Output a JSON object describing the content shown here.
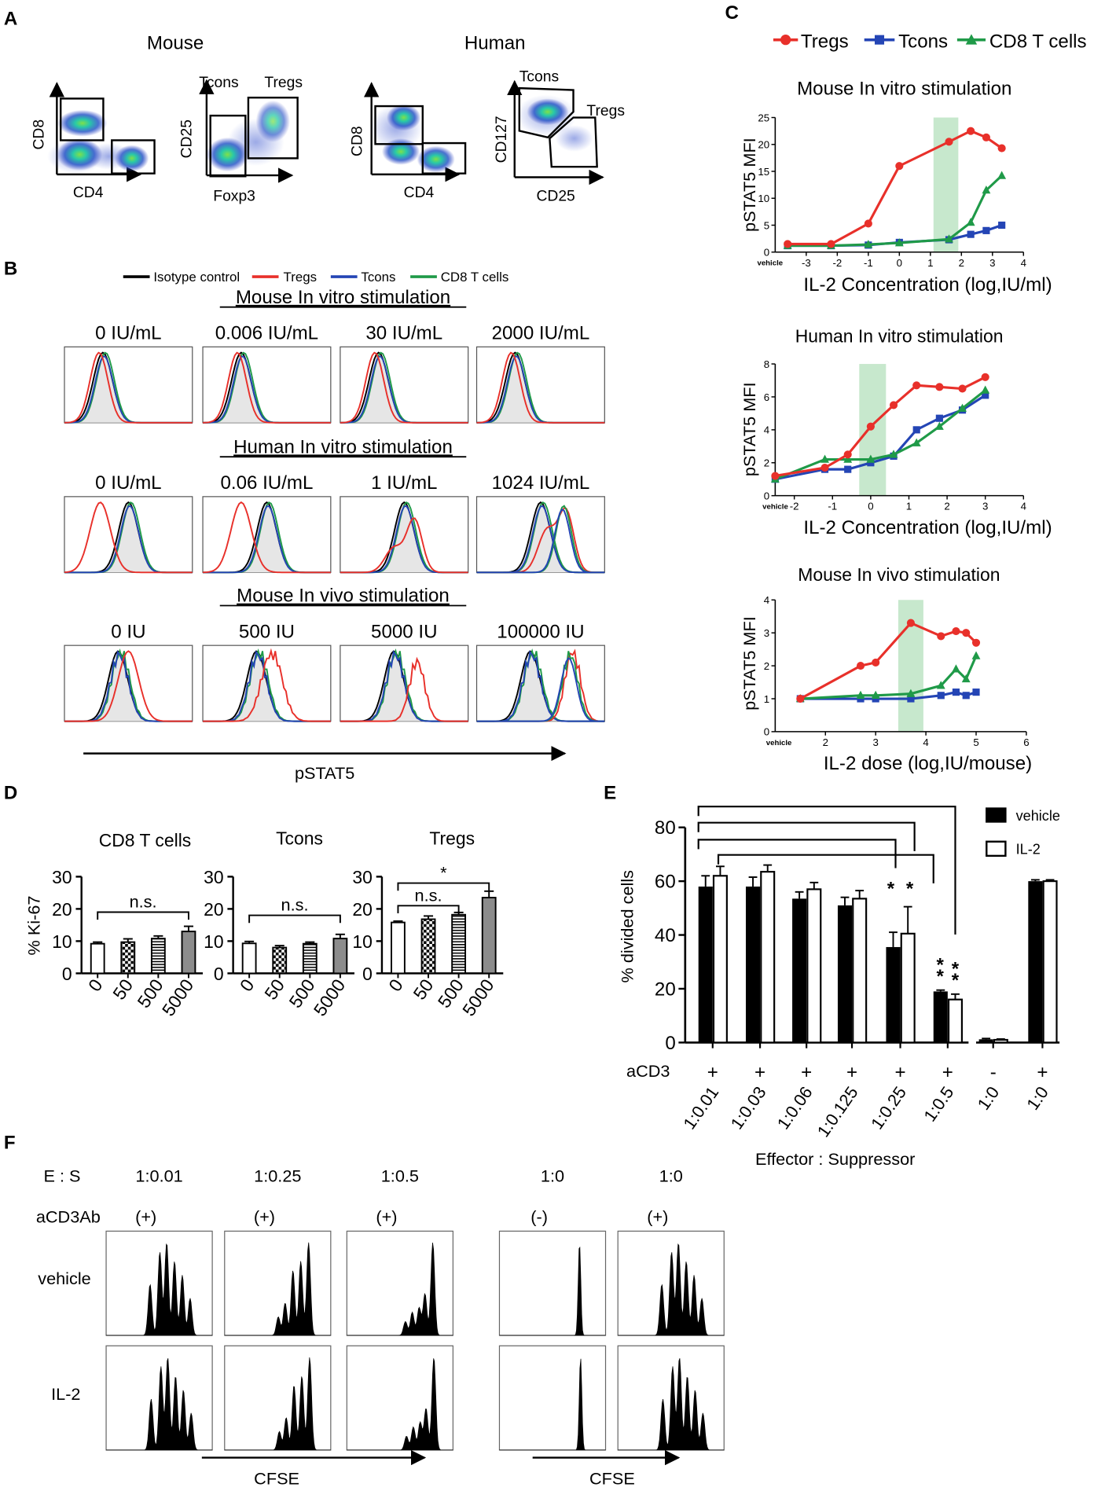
{
  "panel_labels": {
    "a": "A",
    "b": "B",
    "c": "C",
    "d": "D",
    "e": "E",
    "f": "F"
  },
  "panelA": {
    "mouse_title": "Mouse",
    "human_title": "Human",
    "plots": [
      {
        "xlabel": "CD4",
        "ylabel": "CD8",
        "gates": []
      },
      {
        "xlabel": "Foxp3",
        "ylabel": "CD25",
        "gates": [
          "Tcons",
          "Tregs"
        ]
      },
      {
        "xlabel": "CD4",
        "ylabel": "CD8",
        "gates": []
      },
      {
        "xlabel": "CD25",
        "ylabel": "CD127",
        "gates": [
          "Tcons",
          "Tregs"
        ]
      }
    ]
  },
  "panelB": {
    "legend": [
      {
        "label": "Isotype control",
        "color": "#000000"
      },
      {
        "label": "Tregs",
        "color": "#e8302a"
      },
      {
        "label": "Tcons",
        "color": "#2445b5"
      },
      {
        "label": "CD8 T cells",
        "color": "#1f9a48"
      }
    ],
    "rows": [
      {
        "title": "Mouse In vitro stimulation",
        "doses": [
          "0 IU/mL",
          "0.006 IU/mL",
          "30 IU/mL",
          "2000 IU/mL"
        ]
      },
      {
        "title": "Human In vitro stimulation",
        "doses": [
          "0 IU/mL",
          "0.06 IU/mL",
          "1 IU/mL",
          "1024 IU/mL"
        ]
      },
      {
        "title": "Mouse In vivo stimulation",
        "doses": [
          "0 IU",
          "500 IU",
          "5000 IU",
          "100000 IU"
        ]
      }
    ],
    "xlabel": "pSTAT5"
  },
  "colors": {
    "tregs": "#e8302a",
    "tcons": "#2445b5",
    "cd8": "#1f9a48",
    "highlight": "#b9e2c0"
  },
  "chart_data": [
    {
      "id": "C1",
      "type": "line",
      "title": "Mouse In vitro stimulation",
      "legend": [
        "Tregs",
        "Tcons",
        "CD8 T cells"
      ],
      "xlabel": "IL-2 Concentration (log,IU/ml)",
      "ylabel": "pSTAT5 MFI",
      "xlim": [
        -4,
        4
      ],
      "ylim": [
        0,
        25
      ],
      "xticks": [
        -3,
        -2,
        -1,
        0,
        1,
        2,
        3,
        4
      ],
      "xtick_labels": [
        "-3",
        "-2",
        "-1",
        "0",
        "1",
        "2",
        "3",
        "4"
      ],
      "yticks": [
        0,
        5,
        10,
        15,
        20,
        25
      ],
      "ytick_labels": [
        "0",
        "5",
        "10",
        "15",
        "20",
        "25"
      ],
      "vehicle_label": "vehicle",
      "vehicle_x": -3.8,
      "highlight": [
        1.1,
        1.9
      ],
      "series": [
        {
          "name": "Tregs",
          "x": [
            -3.6,
            -2.2,
            -1.0,
            0.0,
            1.6,
            2.3,
            2.8,
            3.3
          ],
          "y": [
            1.5,
            1.5,
            5.3,
            16.0,
            20.5,
            22.5,
            21.3,
            19.3
          ]
        },
        {
          "name": "Tcons",
          "x": [
            -3.6,
            -2.2,
            -1.0,
            0.0,
            1.6,
            2.3,
            2.8,
            3.3
          ],
          "y": [
            1.2,
            1.2,
            1.3,
            1.8,
            2.3,
            3.3,
            4.0,
            5.0
          ]
        },
        {
          "name": "CD8 T cells",
          "x": [
            -3.6,
            -2.2,
            -1.0,
            0.0,
            1.6,
            2.3,
            2.8,
            3.3
          ],
          "y": [
            1.2,
            1.2,
            1.4,
            1.7,
            2.4,
            5.5,
            11.5,
            14.2
          ]
        }
      ]
    },
    {
      "id": "C2",
      "type": "line",
      "title": "Human In vitro stimulation",
      "xlabel": "IL-2 Concentration (log,IU/ml)",
      "ylabel": "pSTAT5 MFI",
      "xlim": [
        -2.5,
        4
      ],
      "ylim": [
        0,
        8
      ],
      "xticks": [
        -2,
        -1,
        0,
        1,
        2,
        3,
        4
      ],
      "xtick_labels": [
        "-2",
        "-1",
        "0",
        "1",
        "2",
        "3",
        "4"
      ],
      "yticks": [
        0,
        2,
        4,
        6,
        8
      ],
      "ytick_labels": [
        "0",
        "2",
        "4",
        "6",
        "8"
      ],
      "vehicle_label": "vehicle",
      "vehicle_x": -2.2,
      "highlight": [
        -0.3,
        0.4
      ],
      "series": [
        {
          "name": "Tregs",
          "x": [
            -2.5,
            -1.2,
            -0.6,
            0.0,
            0.6,
            1.2,
            1.8,
            2.4,
            3.0
          ],
          "y": [
            1.2,
            1.7,
            2.5,
            4.2,
            5.5,
            6.7,
            6.6,
            6.5,
            7.2
          ]
        },
        {
          "name": "Tcons",
          "x": [
            -2.5,
            -1.2,
            -0.6,
            0.0,
            0.6,
            1.2,
            1.8,
            2.4,
            3.0
          ],
          "y": [
            1.0,
            1.6,
            1.6,
            2.0,
            2.4,
            4.0,
            4.7,
            5.2,
            6.1
          ]
        },
        {
          "name": "CD8 T cells",
          "x": [
            -2.5,
            -1.2,
            -0.6,
            0.0,
            0.6,
            1.2,
            1.8,
            2.4,
            3.0
          ],
          "y": [
            1.0,
            2.2,
            2.2,
            2.2,
            2.5,
            3.2,
            4.2,
            5.3,
            6.4
          ]
        }
      ]
    },
    {
      "id": "C3",
      "type": "line",
      "title": "Mouse In vivo stimulation",
      "xlabel": "IL-2 dose (log,IU/mouse)",
      "ylabel": "pSTAT5 MFI",
      "xlim": [
        1,
        6
      ],
      "ylim": [
        0,
        4
      ],
      "xticks": [
        2,
        3,
        4,
        5,
        6
      ],
      "xtick_labels": [
        "2",
        "3",
        "4",
        "5",
        "6"
      ],
      "yticks": [
        0,
        1,
        2,
        3,
        4
      ],
      "ytick_labels": [
        "0",
        "1",
        "2",
        "3",
        "4"
      ],
      "vehicle_label": "vehicle",
      "vehicle_x": 1.3,
      "highlight": [
        3.45,
        3.95
      ],
      "series": [
        {
          "name": "Tregs",
          "x": [
            1.5,
            2.7,
            3.0,
            3.7,
            4.3,
            4.6,
            4.8,
            5.0
          ],
          "y": [
            1.0,
            2.0,
            2.1,
            3.3,
            2.9,
            3.05,
            3.0,
            2.7
          ]
        },
        {
          "name": "Tcons",
          "x": [
            1.5,
            2.7,
            3.0,
            3.7,
            4.3,
            4.6,
            4.8,
            5.0
          ],
          "y": [
            1.0,
            1.0,
            1.0,
            1.0,
            1.1,
            1.2,
            1.1,
            1.2
          ]
        },
        {
          "name": "CD8 T cells",
          "x": [
            1.5,
            2.7,
            3.0,
            3.7,
            4.3,
            4.6,
            4.8,
            5.0
          ],
          "y": [
            1.0,
            1.1,
            1.1,
            1.15,
            1.4,
            1.9,
            1.6,
            2.3
          ]
        }
      ]
    },
    {
      "id": "D",
      "type": "bar",
      "ylabel": "% Ki-67",
      "ylim": [
        0,
        30
      ],
      "yticks": [
        0,
        10,
        20,
        30
      ],
      "ytick_labels": [
        "0",
        "10",
        "20",
        "30"
      ],
      "categories": [
        "0",
        "50",
        "500",
        "5000"
      ],
      "subplots": [
        {
          "title": "CD8 T cells",
          "values": [
            9.2,
            9.7,
            10.8,
            13.0
          ],
          "errors": [
            0.5,
            1.0,
            0.8,
            1.6
          ],
          "brackets": [
            {
              "from": 0,
              "to": 3,
              "label": "n.s.",
              "y": 19
            }
          ]
        },
        {
          "title": "Tcons",
          "values": [
            9.3,
            8.0,
            9.2,
            10.8
          ],
          "errors": [
            0.6,
            0.6,
            0.5,
            1.3
          ],
          "brackets": [
            {
              "from": 0,
              "to": 3,
              "label": "n.s.",
              "y": 18
            }
          ]
        },
        {
          "title": "Tregs",
          "values": [
            15.8,
            16.8,
            18.2,
            23.5
          ],
          "errors": [
            0.4,
            1.0,
            0.7,
            2.0
          ],
          "brackets": [
            {
              "from": 0,
              "to": 2,
              "label": "n.s.",
              "y": 21
            },
            {
              "from": 0,
              "to": 3,
              "label": "*",
              "y": 28
            }
          ]
        }
      ]
    },
    {
      "id": "E",
      "type": "bar",
      "ylabel": "% divided cells",
      "ylim": [
        0,
        80
      ],
      "yticks": [
        0,
        20,
        40,
        60,
        80
      ],
      "ytick_labels": [
        "0",
        "20",
        "40",
        "60",
        "80"
      ],
      "legend": [
        "vehicle",
        "IL-2"
      ],
      "row_label": "aCD3",
      "xlabel": "Effector : Suppressor",
      "groups": [
        {
          "ratio": "1:0.01",
          "acd3": "+",
          "vehicle": 58.0,
          "il2": 62.0,
          "ev": 4.0,
          "ei": 3.5,
          "stars": ""
        },
        {
          "ratio": "1:0.03",
          "acd3": "+",
          "vehicle": 58.0,
          "il2": 63.5,
          "ev": 3.5,
          "ei": 2.5,
          "stars": ""
        },
        {
          "ratio": "1:0.06",
          "acd3": "+",
          "vehicle": 53.5,
          "il2": 57.0,
          "ev": 2.5,
          "ei": 2.5,
          "stars": ""
        },
        {
          "ratio": "1:0.125",
          "acd3": "+",
          "vehicle": 51.0,
          "il2": 53.5,
          "ev": 3.0,
          "ei": 3.0,
          "stars": ""
        },
        {
          "ratio": "1:0.25",
          "acd3": "+",
          "vehicle": 35.5,
          "il2": 40.5,
          "ev": 5.5,
          "ei": 10.0,
          "stars": "*"
        },
        {
          "ratio": "1:0.5",
          "acd3": "+",
          "vehicle": 19.0,
          "il2": 16.0,
          "ev": 0.5,
          "ei": 2.0,
          "stars": "**"
        },
        {
          "ratio": "1:0",
          "acd3": "-",
          "vehicle": 1.2,
          "il2": 1.0,
          "ev": 0.3,
          "ei": 0.3,
          "stars": ""
        },
        {
          "ratio": "1:0",
          "acd3": "+",
          "vehicle": 60.0,
          "il2": 60.0,
          "ev": 0.5,
          "ei": 0.5,
          "stars": ""
        }
      ]
    }
  ],
  "panelF": {
    "es_label": "E : S",
    "acd3_label": "aCD3Ab",
    "columns": [
      {
        "ratio": "1:0.01",
        "acd3": "(+)"
      },
      {
        "ratio": "1:0.25",
        "acd3": "(+)"
      },
      {
        "ratio": "1:0.5",
        "acd3": "(+)"
      },
      {
        "ratio": "1:0",
        "acd3": "(-)"
      },
      {
        "ratio": "1:0",
        "acd3": "(+)"
      }
    ],
    "rows": [
      "vehicle",
      "IL-2"
    ],
    "xlabel": "CFSE"
  }
}
